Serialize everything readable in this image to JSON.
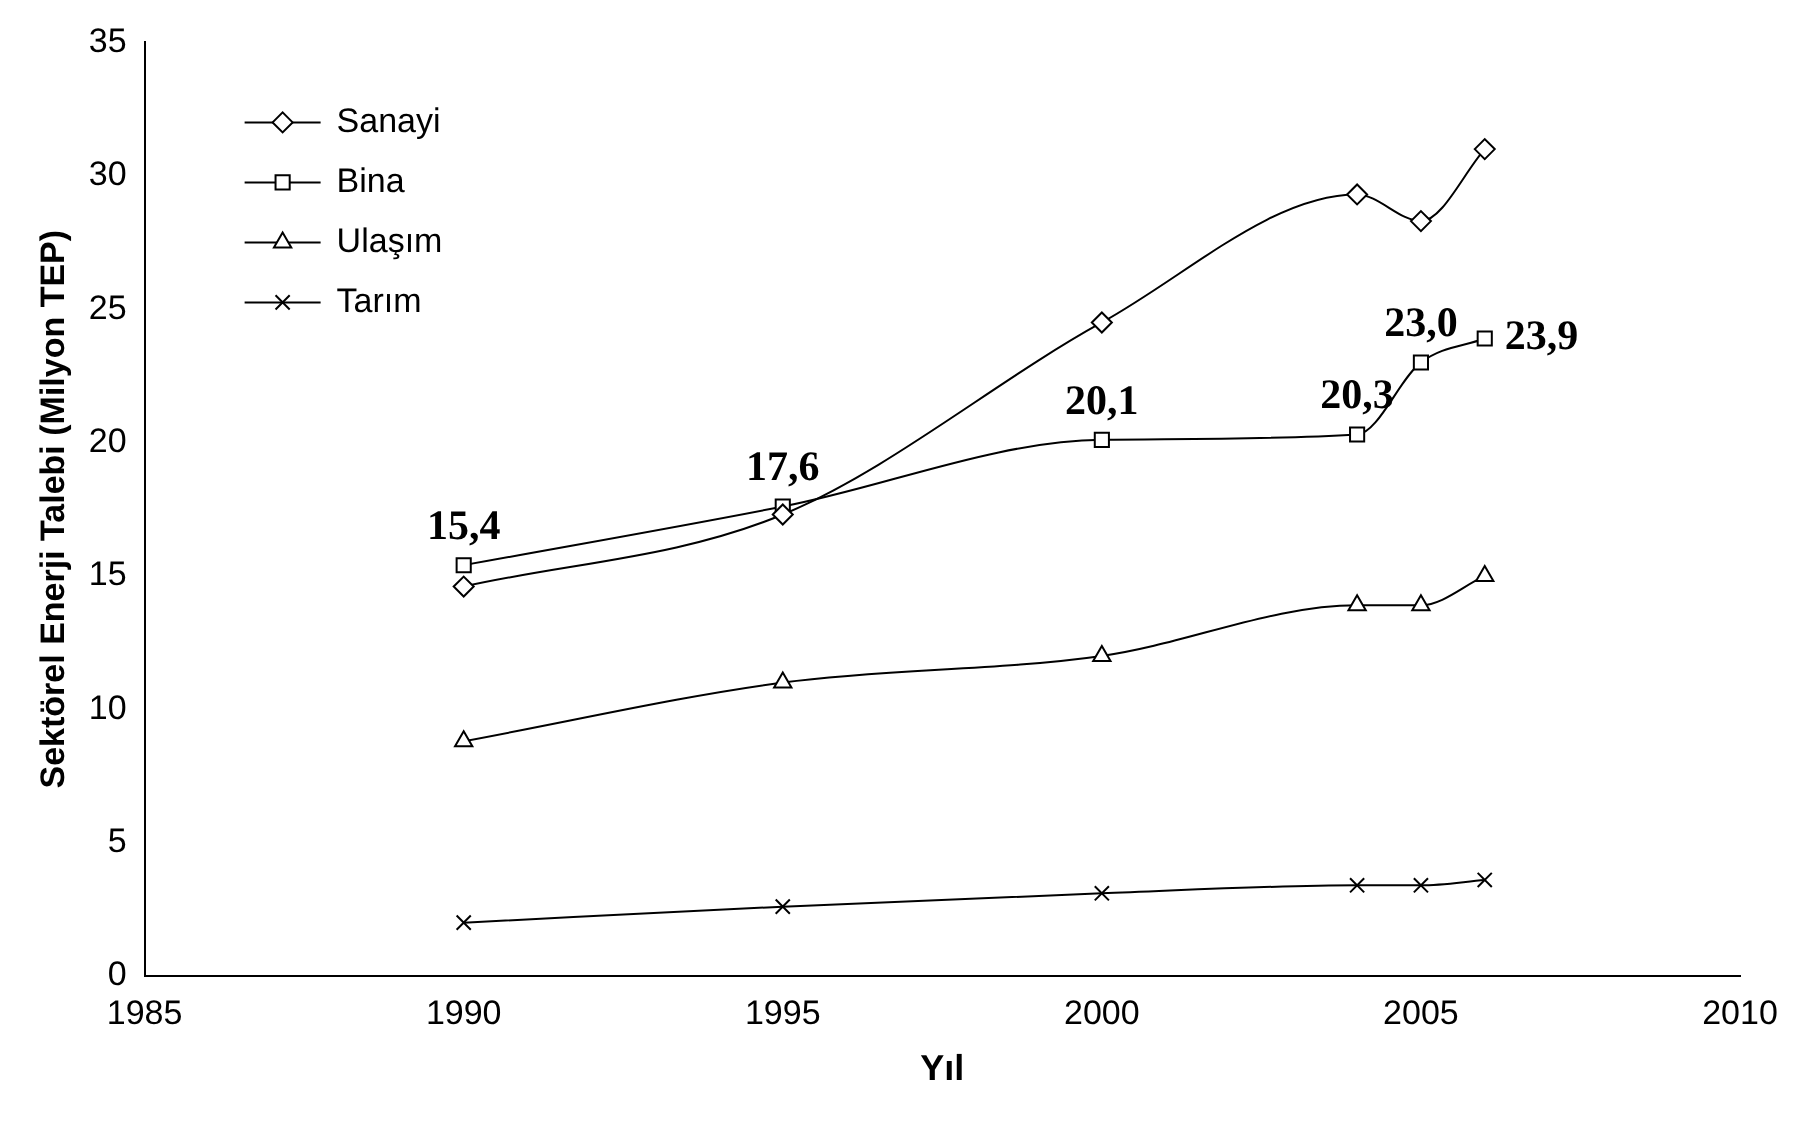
{
  "chart_data": {
    "type": "line",
    "xlabel": "Yıl",
    "ylabel": "Sektörel Enerji Talebi (Milyon TEP)",
    "x": [
      1990,
      1995,
      2000,
      2004,
      2005,
      2006
    ],
    "xlim": [
      1985,
      2010
    ],
    "xticks": [
      1985,
      1990,
      1995,
      2000,
      2005,
      2010
    ],
    "ylim": [
      0,
      35
    ],
    "yticks": [
      0,
      5,
      10,
      15,
      20,
      25,
      30,
      35
    ],
    "grid": false,
    "legend": "top left",
    "line_style": "solid",
    "series": [
      {
        "name": "Sanayi",
        "color": "#000000",
        "marker": "diamond",
        "values": [
          14.6,
          17.3,
          24.5,
          29.3,
          28.3,
          31.0
        ]
      },
      {
        "name": "Bina",
        "color": "#000000",
        "marker": "square",
        "values": [
          15.4,
          17.6,
          20.1,
          20.3,
          23.0,
          23.9
        ],
        "value_labels": [
          "15,4",
          "17,6",
          "20,1",
          "20,3",
          "23,0",
          "23,9"
        ]
      },
      {
        "name": "Ulaşım",
        "color": "#000000",
        "marker": "triangle",
        "values": [
          8.8,
          11.0,
          12.0,
          13.9,
          13.9,
          15.0
        ]
      },
      {
        "name": "Tarım",
        "color": "#000000",
        "marker": "cross",
        "values": [
          2.0,
          2.6,
          3.1,
          3.4,
          3.4,
          3.6
        ]
      }
    ]
  }
}
